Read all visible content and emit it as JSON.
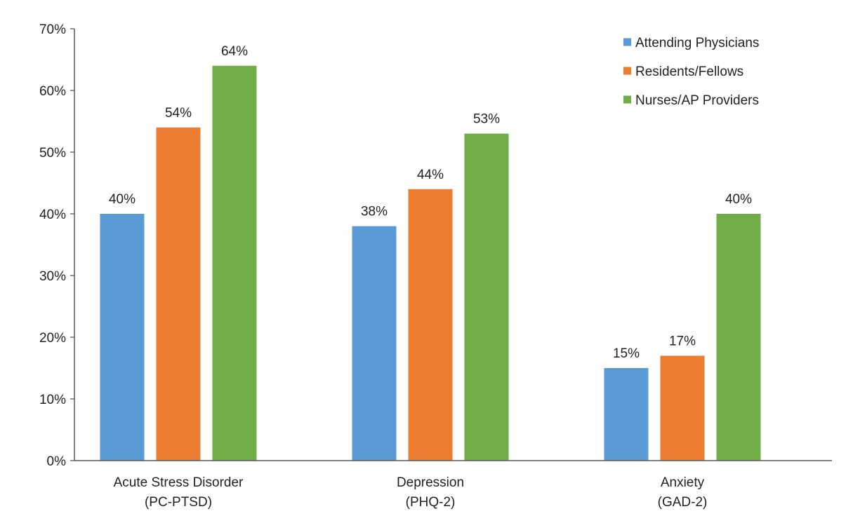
{
  "chart_data": {
    "type": "bar",
    "title": "",
    "xlabel": "",
    "ylabel": "",
    "categories": [
      [
        "Acute Stress Disorder",
        "(PC-PTSD)"
      ],
      [
        "Depression",
        "(PHQ-2)"
      ],
      [
        "Anxiety",
        "(GAD-2)"
      ]
    ],
    "series": [
      {
        "name": "Attending Physicians",
        "color": "#5B9BD5",
        "values": [
          40,
          38,
          15
        ],
        "labels": [
          "40%",
          "38%",
          "15%"
        ]
      },
      {
        "name": "Residents/Fellows",
        "color": "#ED7D31",
        "values": [
          54,
          44,
          17
        ],
        "labels": [
          "54%",
          "44%",
          "17%"
        ]
      },
      {
        "name": "Nurses/AP Providers",
        "color": "#70AD47",
        "values": [
          64,
          53,
          40
        ],
        "labels": [
          "64%",
          "53%",
          "40%"
        ]
      }
    ],
    "ylim": [
      0,
      70
    ],
    "yticks": [
      0,
      10,
      20,
      30,
      40,
      50,
      60,
      70
    ],
    "ytick_labels": [
      "0%",
      "10%",
      "20%",
      "30%",
      "40%",
      "50%",
      "60%",
      "70%"
    ],
    "grid": false,
    "legend_position": "top-right",
    "axis_color": "#595959"
  }
}
